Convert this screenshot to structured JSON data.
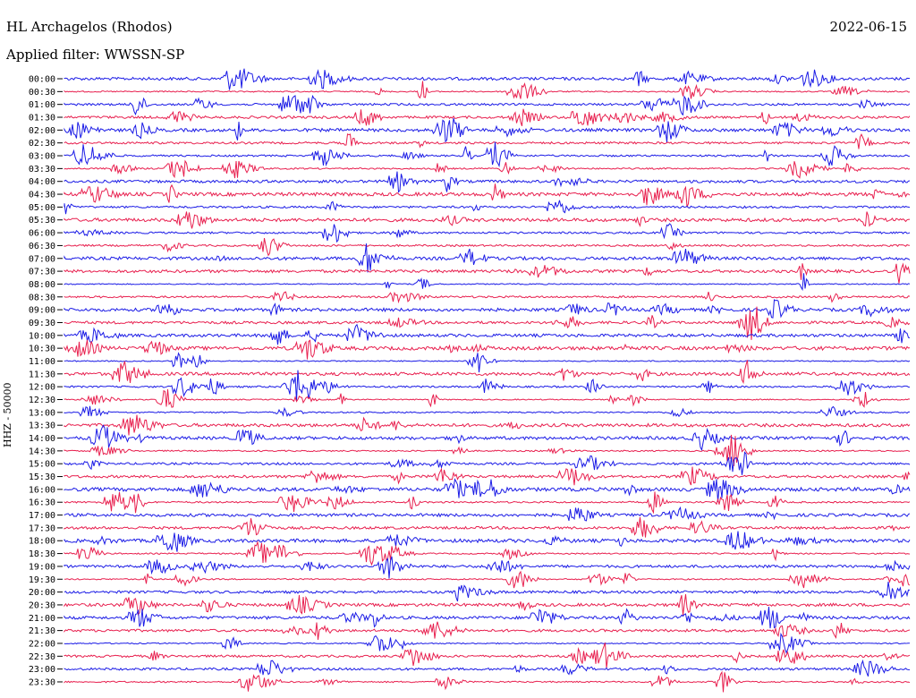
{
  "header": {
    "station": "HL Archagelos (Rhodos)",
    "date": "2022-06-15",
    "filter_label": "Applied filter: WWSSN-SP"
  },
  "chart_data": {
    "type": "line",
    "title": "HL Archagelos (Rhodos)",
    "ylabel": "HHZ - 50000",
    "xlabel": "",
    "colors": [
      "#1b1be6",
      "#e8204f"
    ],
    "grid": false,
    "tick_labels": [
      "00:00",
      "00:30",
      "01:00",
      "01:30",
      "02:00",
      "02:30",
      "03:00",
      "03:30",
      "04:00",
      "04:30",
      "05:00",
      "05:30",
      "06:00",
      "06:30",
      "07:00",
      "07:30",
      "08:00",
      "08:30",
      "09:00",
      "09:30",
      "10:00",
      "10:30",
      "11:00",
      "11:30",
      "12:00",
      "12:30",
      "13:00",
      "13:30",
      "14:00",
      "14:30",
      "15:00",
      "15:30",
      "16:00",
      "16:30",
      "17:00",
      "17:30",
      "18:00",
      "18:30",
      "19:00",
      "19:30",
      "20:00",
      "20:30",
      "21:00",
      "21:30",
      "22:00",
      "22:30",
      "23:00",
      "23:30"
    ]
  }
}
